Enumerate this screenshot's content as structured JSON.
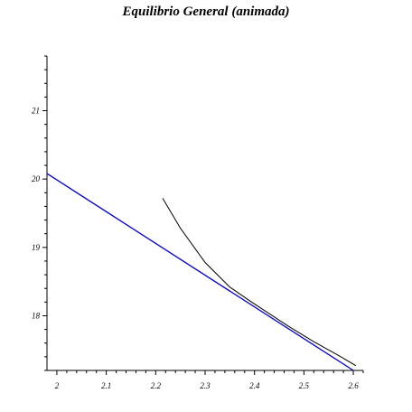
{
  "chart_data": {
    "type": "line",
    "title": "Equilibrio General (animada)",
    "xlabel": "",
    "ylabel": "",
    "xlim": [
      1.98,
      2.62
    ],
    "ylim": [
      17.2,
      21.8
    ],
    "grid": false,
    "legend": "none",
    "x_ticks": [
      2,
      2.1,
      2.2,
      2.3,
      2.4,
      2.5,
      2.6
    ],
    "x_tick_labels": [
      "2",
      "2.1",
      "2.2",
      "2.3",
      "2.4",
      "2.5",
      "2.6"
    ],
    "y_ticks": [
      18,
      19,
      20,
      21
    ],
    "y_tick_labels": [
      "18",
      "19",
      "20",
      "21"
    ],
    "series": [
      {
        "color": "#0000cc",
        "x": [
          1.98,
          2.6
        ],
        "y": [
          20.08,
          17.2
        ]
      },
      {
        "color": "#000000",
        "x": [
          2.214,
          2.25,
          2.3,
          2.35,
          2.39,
          2.43,
          2.47,
          2.52,
          2.57,
          2.605
        ],
        "y": [
          19.72,
          19.28,
          18.78,
          18.42,
          18.22,
          18.03,
          17.84,
          17.62,
          17.42,
          17.27
        ]
      }
    ]
  }
}
